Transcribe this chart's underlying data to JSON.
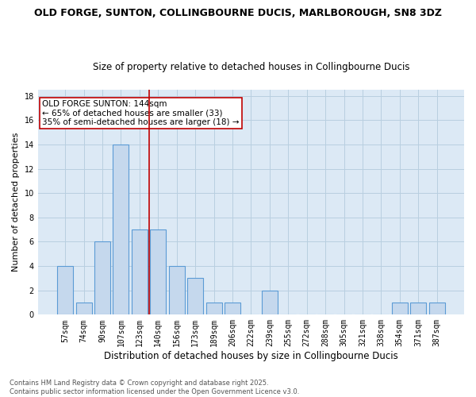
{
  "title": "OLD FORGE, SUNTON, COLLINGBOURNE DUCIS, MARLBOROUGH, SN8 3DZ",
  "subtitle": "Size of property relative to detached houses in Collingbourne Ducis",
  "xlabel": "Distribution of detached houses by size in Collingbourne Ducis",
  "ylabel": "Number of detached properties",
  "categories": [
    "57sqm",
    "74sqm",
    "90sqm",
    "107sqm",
    "123sqm",
    "140sqm",
    "156sqm",
    "173sqm",
    "189sqm",
    "206sqm",
    "222sqm",
    "239sqm",
    "255sqm",
    "272sqm",
    "288sqm",
    "305sqm",
    "321sqm",
    "338sqm",
    "354sqm",
    "371sqm",
    "387sqm"
  ],
  "values": [
    4,
    1,
    6,
    14,
    7,
    7,
    4,
    3,
    1,
    1,
    0,
    2,
    0,
    0,
    0,
    0,
    0,
    0,
    1,
    1,
    1
  ],
  "bar_color": "#c5d8ed",
  "bar_edge_color": "#5b9bd5",
  "grid_color": "#b8cfe0",
  "background_color": "#dce9f5",
  "vline_color": "#c00000",
  "vline_x_index": 4.5,
  "annotation_text": "OLD FORGE SUNTON: 144sqm\n← 65% of detached houses are smaller (33)\n35% of semi-detached houses are larger (18) →",
  "annotation_box_color": "#ffffff",
  "annotation_box_edge": "#c00000",
  "ylim": [
    0,
    18.5
  ],
  "yticks": [
    0,
    2,
    4,
    6,
    8,
    10,
    12,
    14,
    16,
    18
  ],
  "footnote": "Contains HM Land Registry data © Crown copyright and database right 2025.\nContains public sector information licensed under the Open Government Licence v3.0.",
  "title_fontsize": 9,
  "subtitle_fontsize": 8.5,
  "xlabel_fontsize": 8.5,
  "ylabel_fontsize": 8,
  "tick_fontsize": 7,
  "annot_fontsize": 7.5,
  "footnote_fontsize": 6
}
